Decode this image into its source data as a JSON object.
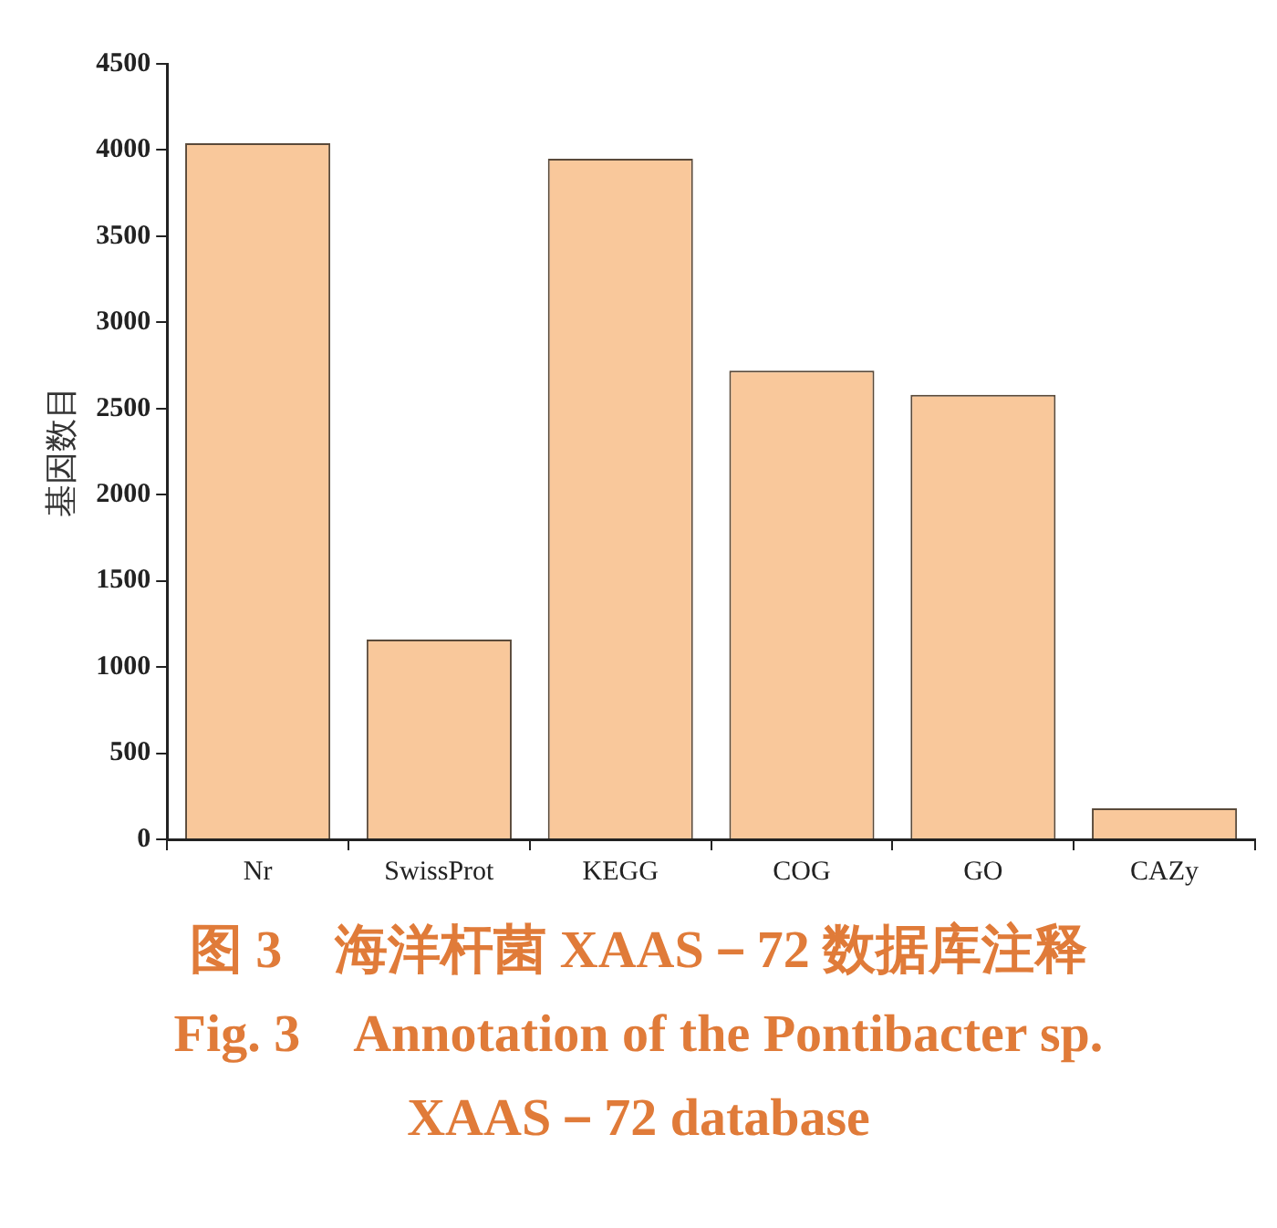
{
  "chart_data": {
    "type": "bar",
    "title": "图 3　海洋杆菌 XAAS－72 数据库注释",
    "subtitle": "Fig. 3　Annotation of the Pontibacter sp. XAAS－72 database",
    "ylabel": "基因数目",
    "categories": [
      "Nr",
      "SwissProt",
      "KEGG",
      "COG",
      "GO",
      "CAZy"
    ],
    "values": [
      4040,
      1160,
      3950,
      2720,
      2580,
      180
    ],
    "color": "#f9c89b",
    "ylim": [
      0,
      4500
    ],
    "yticks": [
      0,
      500,
      1000,
      1500,
      2000,
      2500,
      3000,
      3500,
      4000,
      4500
    ],
    "grid": false
  }
}
